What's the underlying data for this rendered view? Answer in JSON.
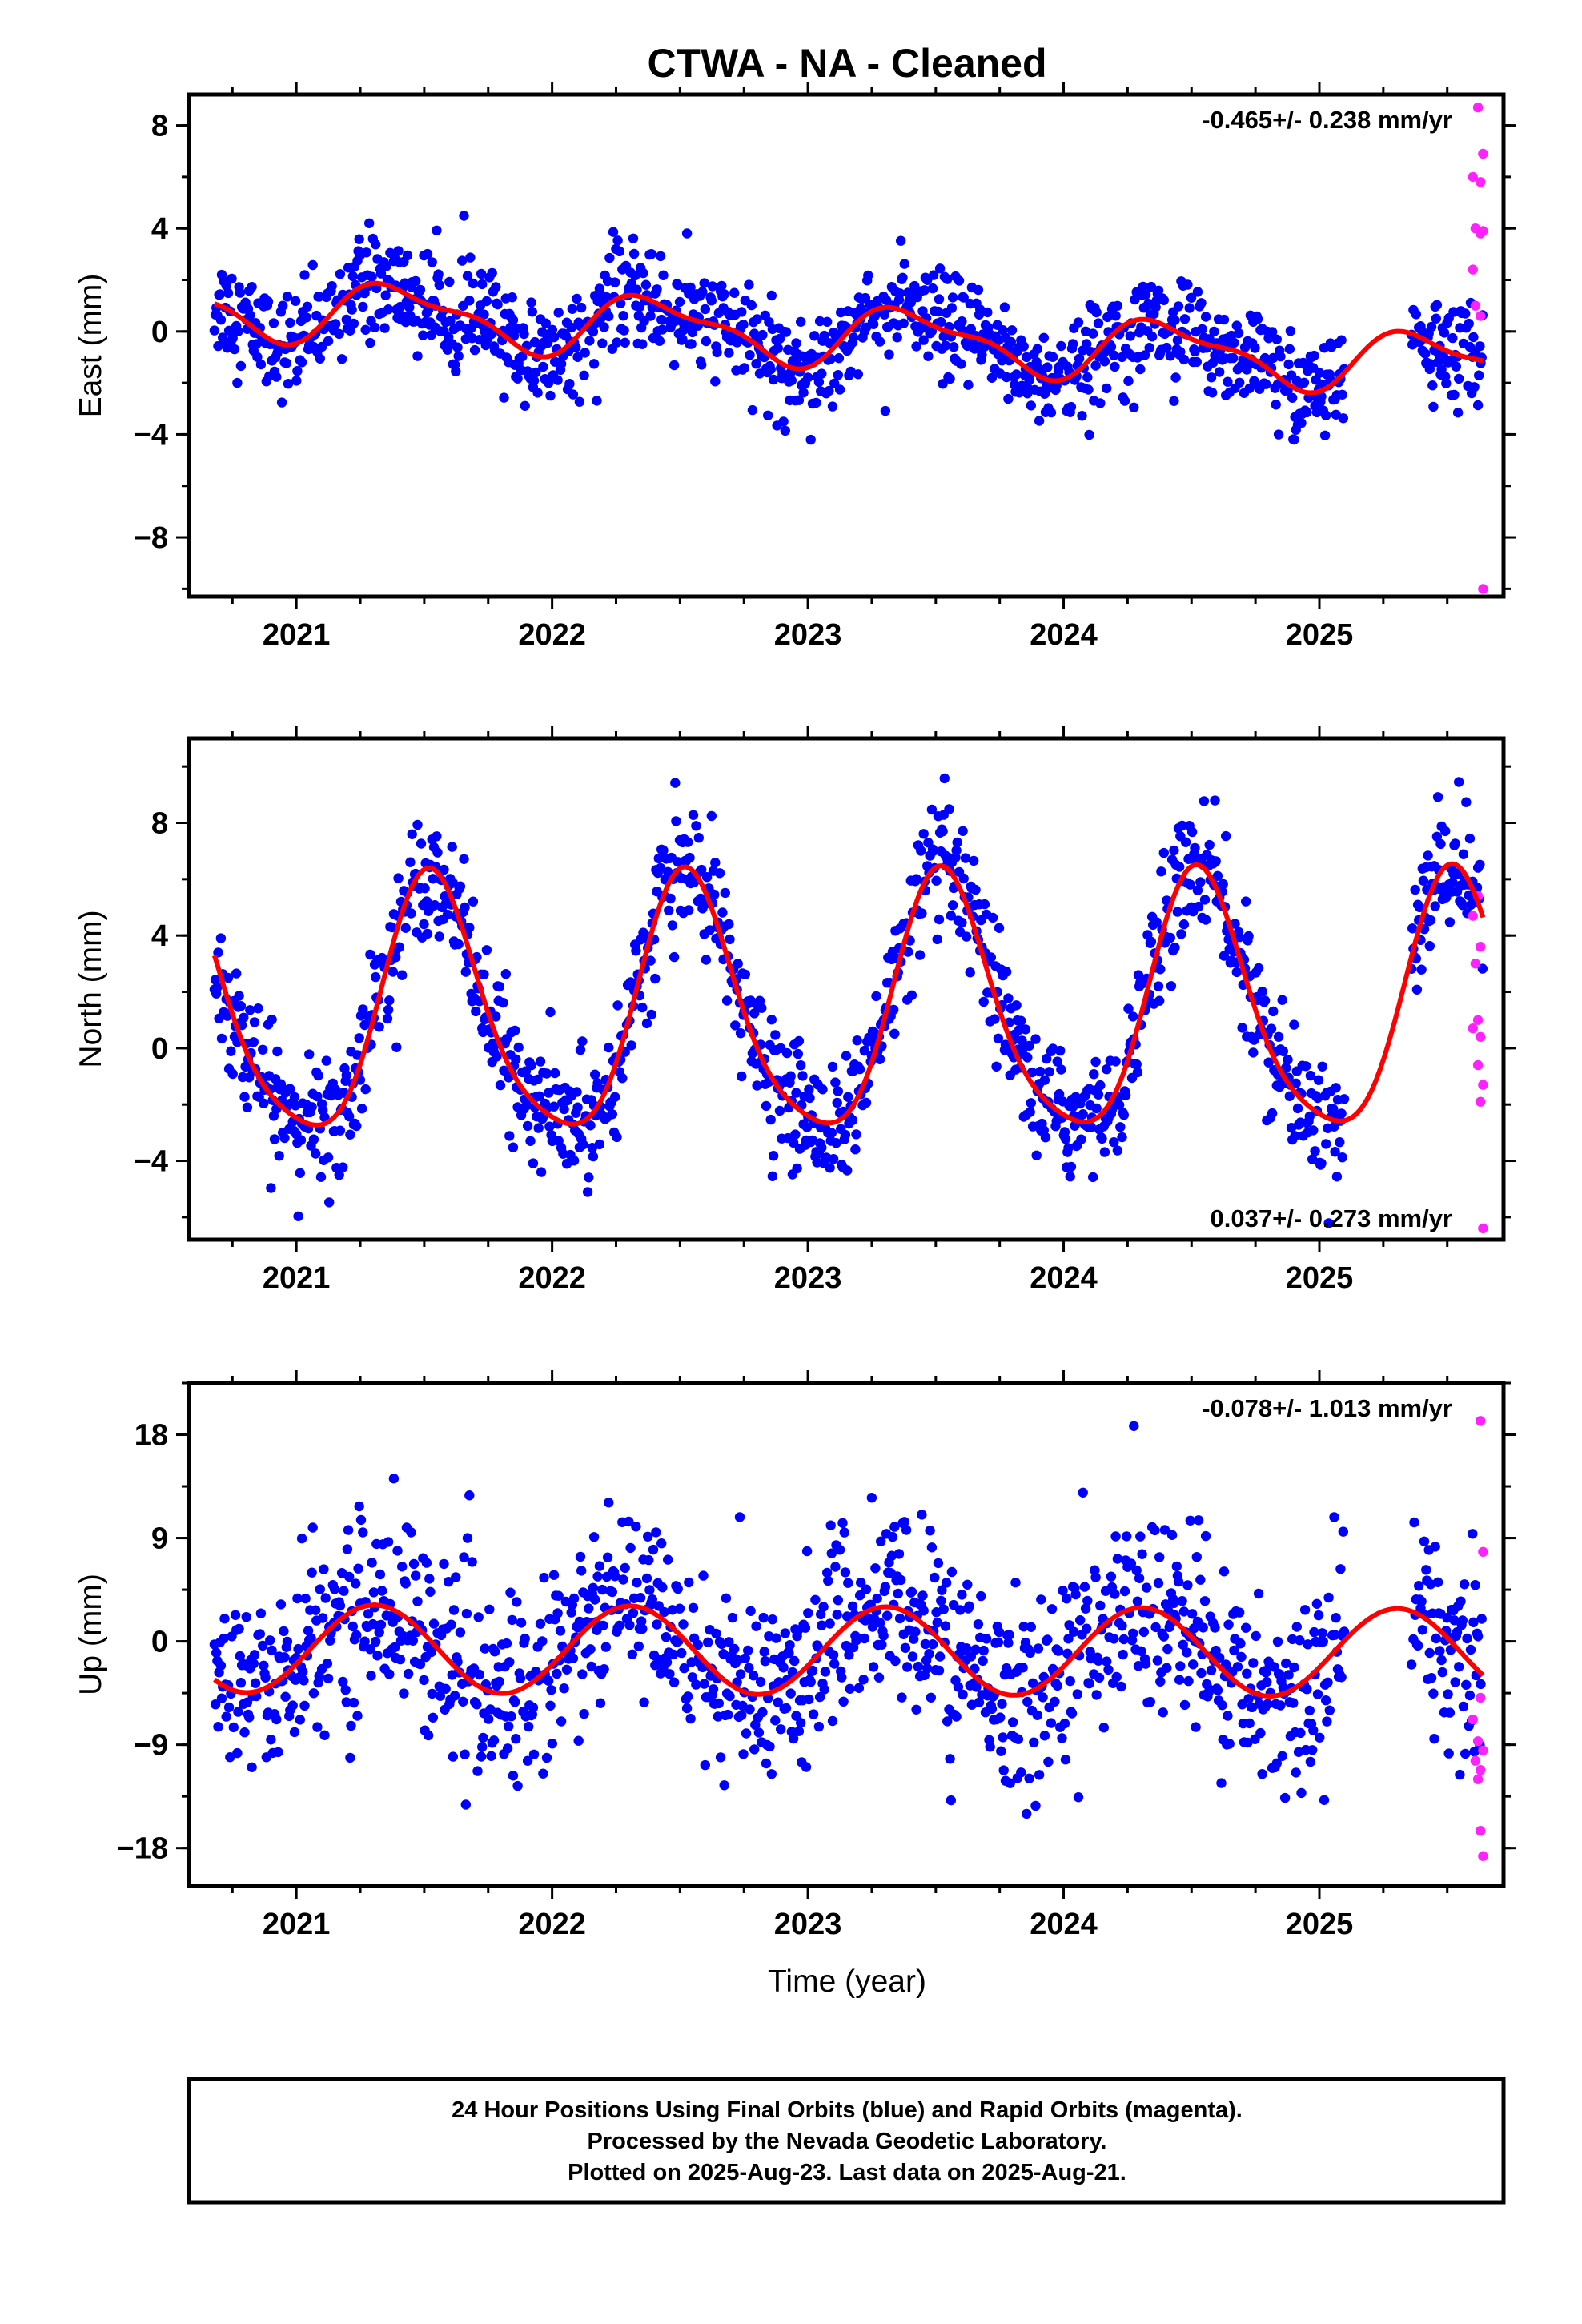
{
  "title": "CTWA  - NA - Cleaned",
  "xlabel": "Time (year)",
  "footer": {
    "line1": "24 Hour Positions Using Final Orbits (blue) and Rapid Orbits (magenta).",
    "line2": "Processed by the Nevada Geodetic Laboratory.",
    "line3": "Plotted on 2025-Aug-23. Last data on 2025-Aug-21."
  },
  "colors": {
    "final_orbits": "#0000ff",
    "rapid_orbits": "#ff22ff",
    "model_fit": "#ff0000",
    "frame": "#000000"
  },
  "chart_data": [
    {
      "type": "scatter",
      "component": "east",
      "ylabel": "East (mm)",
      "rate_label": "-0.465+/- 0.238 mm/yr",
      "rate_position": "top-right",
      "xlim": [
        2020.58,
        2025.72
      ],
      "ylim": [
        -10.3,
        9.2
      ],
      "xticks": [
        2021,
        2022,
        2023,
        2024,
        2025
      ],
      "xtick_labels": [
        "2021",
        "2022",
        "2023",
        "2024",
        "2025"
      ],
      "yticks": [
        8,
        4,
        0,
        -4,
        -8
      ],
      "ytick_labels": [
        "8",
        "4",
        "0",
        "−4",
        "−8"
      ],
      "data_start": 2020.68,
      "data_end": 2025.64,
      "gap": [
        2025.1,
        2025.36
      ],
      "scatter_std": 1.0,
      "model": {
        "offset": -0.1,
        "rate": -0.465,
        "annual_sin": 0.6,
        "annual_cos": -0.9,
        "semi_sin": 0.0,
        "semi_cos": -0.4,
        "t0": 2023.0
      },
      "rapid_points": [
        [
          2025.62,
          8.7
        ],
        [
          2025.64,
          6.9
        ],
        [
          2025.6,
          6.0
        ],
        [
          2025.63,
          5.8
        ],
        [
          2025.61,
          4.0
        ],
        [
          2025.63,
          3.8
        ],
        [
          2025.64,
          3.9
        ],
        [
          2025.6,
          2.4
        ],
        [
          2025.63,
          0.6
        ],
        [
          2025.61,
          1.0
        ],
        [
          2025.64,
          -10.0
        ]
      ]
    },
    {
      "type": "scatter",
      "component": "north",
      "ylabel": "North (mm)",
      "rate_label": "0.037+/- 0.273 mm/yr",
      "rate_position": "bottom-right",
      "xlim": [
        2020.58,
        2025.72
      ],
      "ylim": [
        -6.8,
        11.0
      ],
      "xticks": [
        2021,
        2022,
        2023,
        2024,
        2025
      ],
      "xtick_labels": [
        "2021",
        "2022",
        "2023",
        "2024",
        "2025"
      ],
      "yticks": [
        8,
        4,
        0,
        -4
      ],
      "ytick_labels": [
        "8",
        "4",
        "0",
        "−4"
      ],
      "data_start": 2020.68,
      "data_end": 2025.64,
      "gap": [
        2025.1,
        2025.36
      ],
      "scatter_std": 1.1,
      "model": {
        "offset": 1.2,
        "rate": 0.037,
        "annual_sin": -0.9,
        "annual_cos": -4.4,
        "semi_sin": 0.0,
        "semi_cos": 0.8,
        "t0": 2023.0
      },
      "rapid_points": [
        [
          2025.62,
          5.4
        ],
        [
          2025.6,
          4.7
        ],
        [
          2025.63,
          3.6
        ],
        [
          2025.61,
          3.0
        ],
        [
          2025.62,
          1.0
        ],
        [
          2025.6,
          0.7
        ],
        [
          2025.63,
          0.4
        ],
        [
          2025.62,
          -0.6
        ],
        [
          2025.64,
          -1.3
        ],
        [
          2025.63,
          -1.9
        ],
        [
          2025.64,
          -6.4
        ]
      ]
    },
    {
      "type": "scatter",
      "component": "up",
      "ylabel": "Up (mm)",
      "rate_label": "-0.078+/- 1.013 mm/yr",
      "rate_position": "top-right",
      "xlim": [
        2020.58,
        2025.72
      ],
      "ylim": [
        -21.3,
        22.5
      ],
      "xticks": [
        2021,
        2022,
        2023,
        2024,
        2025
      ],
      "xtick_labels": [
        "2021",
        "2022",
        "2023",
        "2024",
        "2025"
      ],
      "yticks": [
        18,
        9,
        0,
        -9,
        -18
      ],
      "ytick_labels": [
        "18",
        "9",
        "0",
        "−9",
        "−18"
      ],
      "data_start": 2020.68,
      "data_end": 2025.64,
      "gap": [
        2025.1,
        2025.36
      ],
      "scatter_std": 4.2,
      "model": {
        "offset": -0.8,
        "rate": -0.078,
        "annual_sin": 3.6,
        "annual_cos": -1.3,
        "semi_sin": 0.0,
        "semi_cos": 0.0,
        "t0": 2023.0
      },
      "rapid_points": [
        [
          2025.63,
          19.2
        ],
        [
          2025.64,
          7.8
        ],
        [
          2025.63,
          -4.9
        ],
        [
          2025.6,
          -6.8
        ],
        [
          2025.62,
          -8.7
        ],
        [
          2025.64,
          -9.5
        ],
        [
          2025.61,
          -10.4
        ],
        [
          2025.63,
          -11.2
        ],
        [
          2025.62,
          -12.0
        ],
        [
          2025.63,
          -16.5
        ],
        [
          2025.64,
          -18.7
        ]
      ]
    }
  ]
}
